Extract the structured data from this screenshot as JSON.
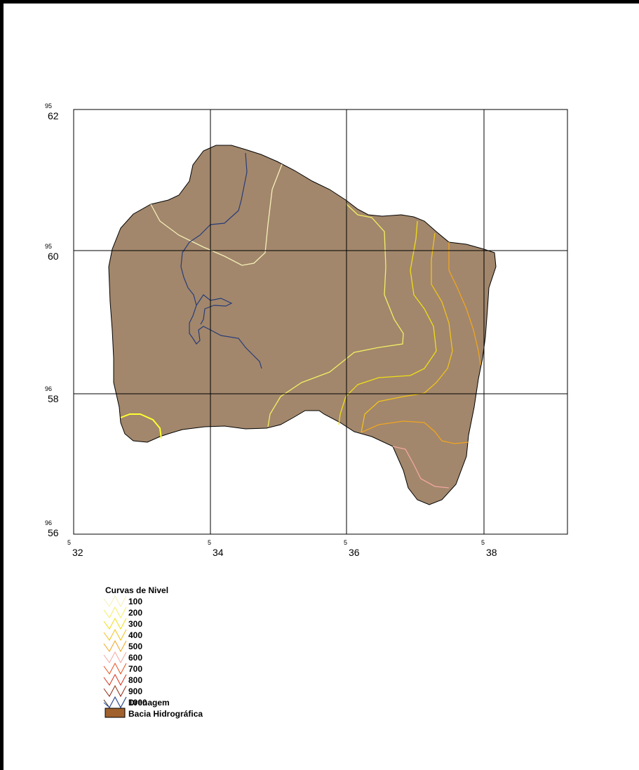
{
  "y_ticks": [
    {
      "exp": "95",
      "val": "62"
    },
    {
      "exp": "95",
      "val": "60"
    },
    {
      "exp": "96",
      "val": "58"
    },
    {
      "exp": "96",
      "val": "56"
    }
  ],
  "x_ticks": [
    {
      "exp": "5",
      "val": "32"
    },
    {
      "exp": "5",
      "val": "34"
    },
    {
      "exp": "5",
      "val": "36"
    },
    {
      "exp": "5",
      "val": "38"
    }
  ],
  "legend": {
    "title": "Curvas de Nivel",
    "contours": [
      {
        "label": "100",
        "color": "#f5f0b8"
      },
      {
        "label": "200",
        "color": "#f3ef63"
      },
      {
        "label": "300",
        "color": "#f0de16"
      },
      {
        "label": "400",
        "color": "#f0c21b"
      },
      {
        "label": "500",
        "color": "#f0a41e"
      },
      {
        "label": "600",
        "color": "#f3a7a0"
      },
      {
        "label": "700",
        "color": "#e6501e"
      },
      {
        "label": "800",
        "color": "#d2321e"
      },
      {
        "label": "900",
        "color": "#8c2814"
      },
      {
        "label": "1000",
        "color": "#3c2814"
      }
    ],
    "drainage": {
      "label": "Drenagem",
      "color": "#2850a0"
    },
    "basin": {
      "label": "Bacia Hidrográfica",
      "color": "#a0612d"
    }
  },
  "colors": {
    "basin_fill": "#a2876c",
    "drainage": "#283c78"
  }
}
